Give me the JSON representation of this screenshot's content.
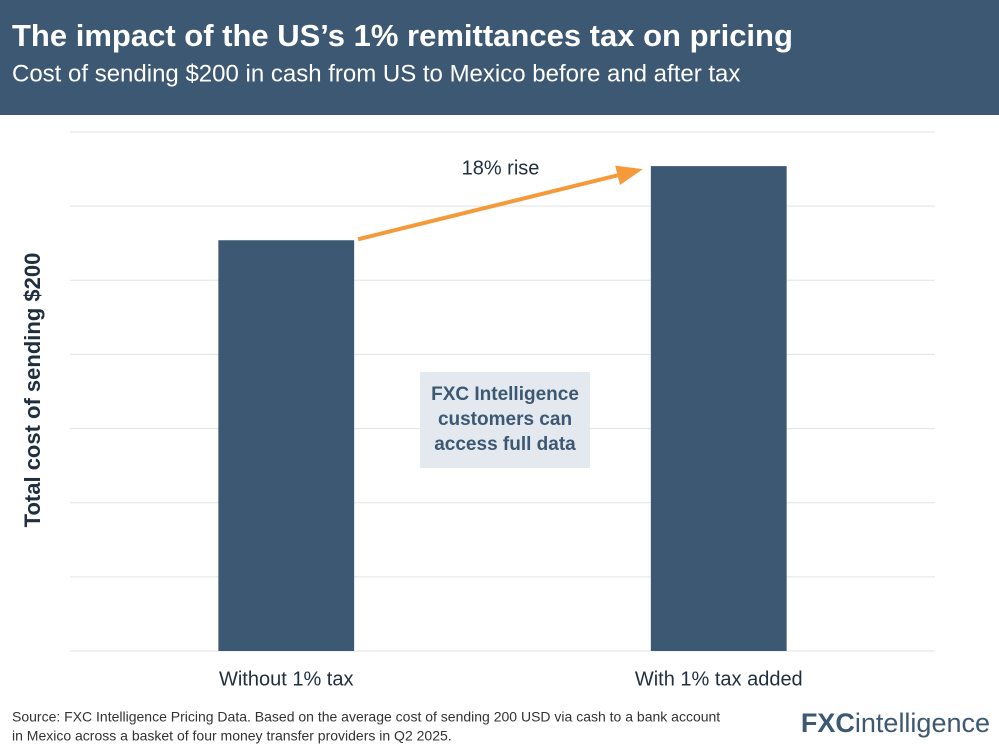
{
  "chart_data": {
    "type": "bar",
    "title": "The impact of the US’s 1% remittances tax on pricing",
    "subtitle": "Cost of sending $200 in cash from US to Mexico before and after tax",
    "y_label": "Total cost of sending $200",
    "categories": [
      "Without 1% tax",
      "With 1% tax added"
    ],
    "values": [
      5.54,
      6.54
    ],
    "color": "#3d5872",
    "ylim": [
      0,
      7
    ],
    "yticks": [
      0,
      1,
      2,
      3,
      4,
      5,
      6,
      7
    ],
    "grid": true,
    "annotation": "18% rise",
    "watermark": [
      "FXC Intelligence",
      "customers can",
      "access full data"
    ],
    "source": [
      "Source: FXC Intelligence Pricing Data. Based on the average cost of sending 200 USD via cash to a bank account",
      "in Mexico across a basket of four money transfer providers in Q2 2025."
    ],
    "logo": [
      "FXC",
      "intelligence"
    ]
  }
}
